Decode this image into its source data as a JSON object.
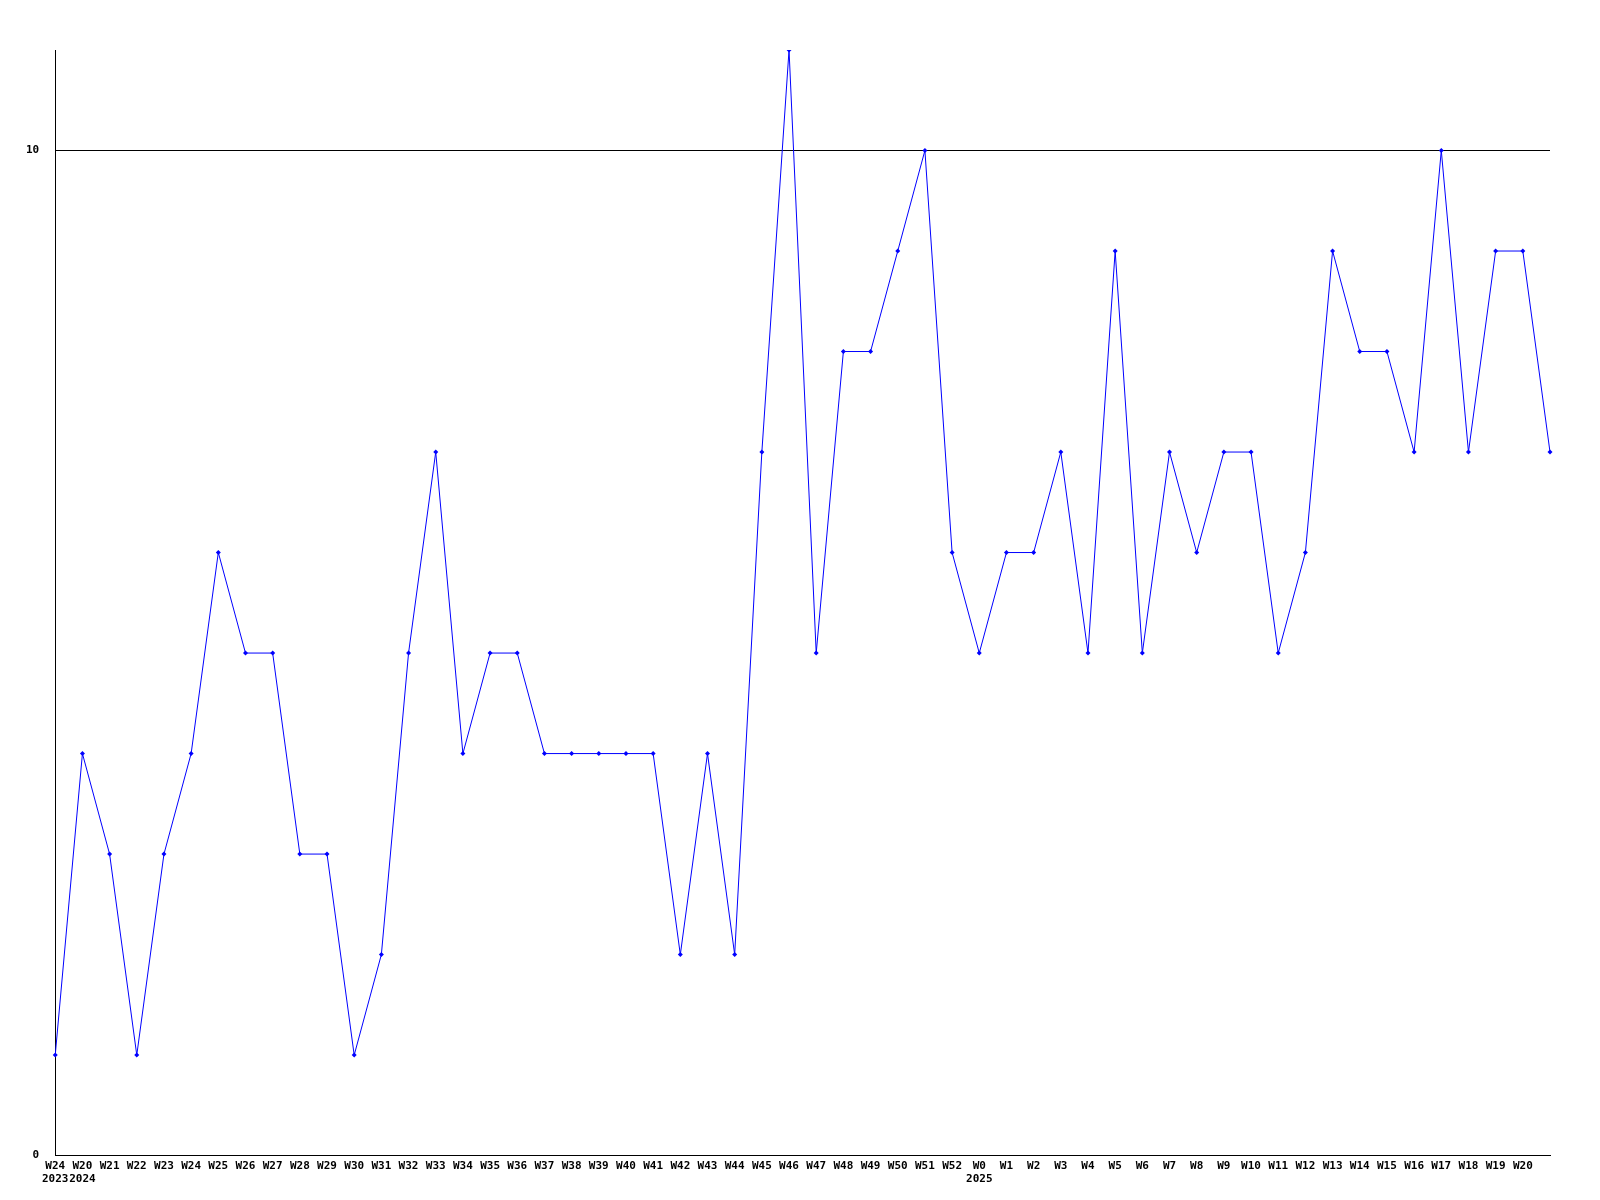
{
  "chart_data": {
    "type": "line",
    "categories": [
      "W24\n2023",
      "W20\n2024",
      "W21",
      "W22",
      "W23",
      "W24",
      "W25",
      "W26",
      "W27",
      "W28",
      "W29",
      "W30",
      "W31",
      "W32",
      "W33",
      "W34",
      "W35",
      "W36",
      "W37",
      "W38",
      "W39",
      "W40",
      "W41",
      "W42",
      "W43",
      "W44",
      "W45",
      "W46",
      "W47",
      "W48",
      "W49",
      "W50",
      "W51",
      "W52",
      "W0\n2025",
      "W1",
      "W2",
      "W3",
      "W4",
      "W5",
      "W6",
      "W7",
      "W8",
      "W9",
      "W10",
      "W11",
      "W12",
      "W13",
      "W14",
      "W15",
      "W16",
      "W17",
      "W18",
      "W19",
      "W20",
      null
    ],
    "values": [
      1,
      4,
      3,
      1,
      3,
      4,
      6,
      5,
      5,
      3,
      3,
      1,
      2,
      5,
      7,
      4,
      5,
      5,
      4,
      4,
      4,
      4,
      4,
      2,
      4,
      2,
      7,
      11,
      5,
      8,
      8,
      9,
      10,
      6,
      5,
      6,
      6,
      7,
      5,
      9,
      5,
      7,
      6,
      7,
      7,
      5,
      6,
      9,
      8,
      8,
      7,
      10,
      7,
      9,
      9,
      7
    ],
    "color": "#0000ff",
    "ylim": [
      0,
      11
    ],
    "yticks": [
      0,
      10
    ],
    "grid": "y",
    "marker": "diamond",
    "line_style": "solid",
    "legend": false
  }
}
